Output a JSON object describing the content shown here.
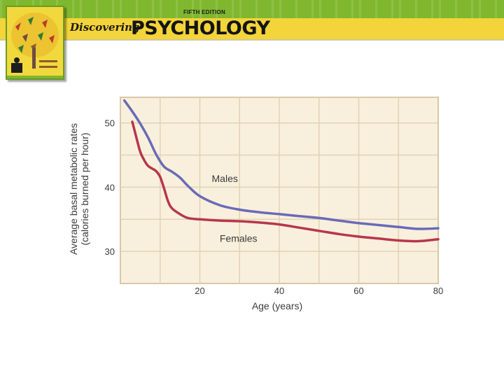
{
  "header": {
    "edition": "FIFTH EDITION",
    "brand_prefix": "Discovering",
    "brand_main": "PSYCHOLOGY"
  },
  "book_cover": {
    "title_small": "Discovering PSYCHOLOGY",
    "author_lines": [
      "HOCKENBURY",
      "HOCKENBURY"
    ]
  },
  "colors": {
    "header_green": "#7fb82e",
    "header_yellow": "#f3d43a",
    "plot_background": "#f8f0dc",
    "grid": "#e2d2b4",
    "males_line": "#6a6ab8",
    "females_line": "#b8364c"
  },
  "chart_data": {
    "type": "line",
    "title": "",
    "xlabel": "Age (years)",
    "ylabel": "Average basal metabolic rates (calories burned per hour)",
    "ylabel_lines": [
      "Average basal metabolic rates",
      "(calories burned per hour)"
    ],
    "xlim": [
      0,
      80
    ],
    "ylim": [
      25,
      54
    ],
    "xticks": [
      20,
      40,
      60,
      80
    ],
    "xtick_labels": [
      "20",
      "40",
      "60",
      "80"
    ],
    "yticks": [
      30,
      40,
      50
    ],
    "ytick_labels": [
      "30",
      "40",
      "50"
    ],
    "grid": true,
    "legend": "inline-labels",
    "series": [
      {
        "name": "Males",
        "color": "#6a6ab8",
        "x": [
          1,
          3,
          5,
          7,
          9,
          11,
          13,
          15,
          17,
          20,
          25,
          30,
          35,
          40,
          45,
          50,
          55,
          60,
          65,
          70,
          75,
          80
        ],
        "y": [
          53.5,
          51.8,
          49.9,
          47.7,
          45.1,
          43.2,
          42.4,
          41.5,
          40.2,
          38.6,
          37.2,
          36.5,
          36.1,
          35.8,
          35.5,
          35.2,
          34.8,
          34.4,
          34.1,
          33.8,
          33.5,
          33.6
        ]
      },
      {
        "name": "Females",
        "color": "#b8364c",
        "x": [
          3,
          4,
          5,
          6,
          7,
          8,
          9,
          10,
          11,
          12,
          13,
          15,
          17,
          20,
          25,
          30,
          35,
          40,
          45,
          50,
          55,
          60,
          65,
          70,
          75,
          80
        ],
        "y": [
          50.2,
          47.8,
          45.5,
          44.2,
          43.3,
          42.9,
          42.5,
          41.6,
          39.8,
          37.8,
          36.7,
          35.8,
          35.2,
          35.0,
          34.8,
          34.7,
          34.5,
          34.2,
          33.7,
          33.2,
          32.7,
          32.3,
          32.0,
          31.7,
          31.6,
          31.9
        ]
      }
    ],
    "annotations": [
      {
        "text": "Males",
        "x": 23,
        "y": 40.8
      },
      {
        "text": "Females",
        "x": 25,
        "y": 31.5
      }
    ]
  }
}
